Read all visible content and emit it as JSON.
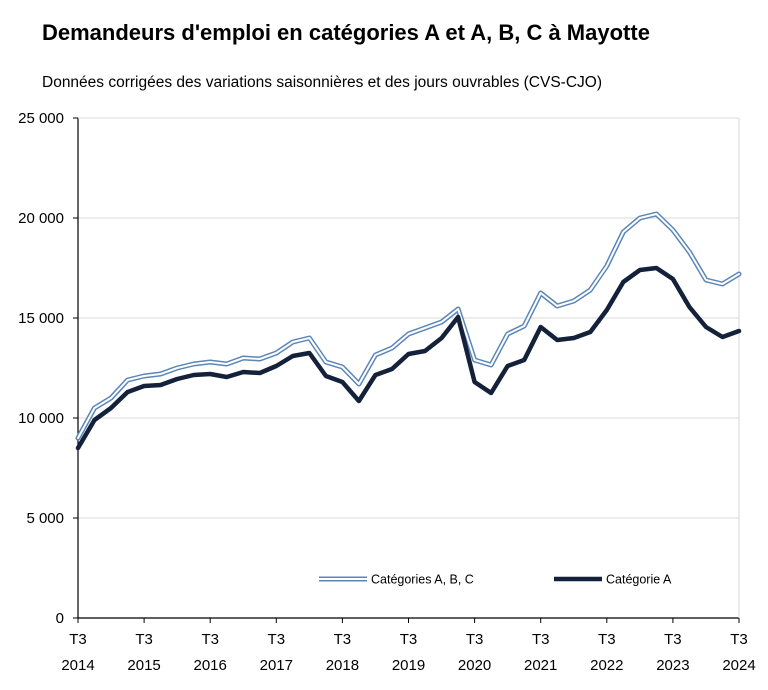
{
  "header": {
    "title": "Demandeurs d'emploi en catégories A et A, B, C à Mayotte",
    "subtitle": "Données corrigées des variations saisonnières et des jours ouvrables (CVS-CJO)"
  },
  "colors": {
    "abc_outline": "#5b86b8",
    "abc_inner": "#ffffff",
    "a_line": "#13223a",
    "grid": "#d9d9d9",
    "axis": "#000000"
  },
  "chart_data": {
    "type": "line",
    "title": "Demandeurs d'emploi en catégories A et A, B, C à Mayotte",
    "subtitle": "Données corrigées des variations saisonnières et des jours ouvrables (CVS-CJO)",
    "xlabel": "",
    "ylabel": "",
    "ylim": [
      0,
      25000
    ],
    "yticks": [
      0,
      5000,
      10000,
      15000,
      20000,
      25000
    ],
    "ytick_labels": [
      "0",
      "5 000",
      "10 000",
      "15 000",
      "20 000",
      "25 000"
    ],
    "xticks": [
      {
        "top": "T3",
        "bottom": "2014"
      },
      {
        "top": "T3",
        "bottom": "2015"
      },
      {
        "top": "T3",
        "bottom": "2016"
      },
      {
        "top": "T3",
        "bottom": "2017"
      },
      {
        "top": "T3",
        "bottom": "2018"
      },
      {
        "top": "T3",
        "bottom": "2019"
      },
      {
        "top": "T3",
        "bottom": "2020"
      },
      {
        "top": "T3",
        "bottom": "2021"
      },
      {
        "top": "T3",
        "bottom": "2022"
      },
      {
        "top": "T3",
        "bottom": "2023"
      },
      {
        "top": "T3",
        "bottom": "2024"
      }
    ],
    "grid": true,
    "legend_position": "bottom",
    "x": [
      "T3 2014",
      "T4 2014",
      "T1 2015",
      "T2 2015",
      "T3 2015",
      "T4 2015",
      "T1 2016",
      "T2 2016",
      "T3 2016",
      "T4 2016",
      "T1 2017",
      "T2 2017",
      "T3 2017",
      "T4 2017",
      "T1 2018",
      "T2 2018",
      "T3 2018",
      "T4 2018",
      "T1 2019",
      "T2 2019",
      "T3 2019",
      "T4 2019",
      "T1 2020",
      "T2 2020",
      "T3 2020",
      "T4 2020",
      "T1 2021",
      "T2 2021",
      "T3 2021",
      "T4 2021",
      "T1 2022",
      "T2 2022",
      "T3 2022",
      "T4 2022",
      "T1 2023",
      "T2 2023",
      "T3 2023",
      "T4 2023",
      "T1 2024",
      "T2 2024",
      "T3 2024"
    ],
    "series": [
      {
        "name": "Catégories A, B, C",
        "style": "double",
        "values": [
          9000,
          10500,
          11000,
          11900,
          12100,
          12200,
          12500,
          12700,
          12800,
          12700,
          13000,
          12950,
          13250,
          13800,
          14000,
          12800,
          12550,
          11700,
          13150,
          13500,
          14200,
          14500,
          14800,
          15450,
          12900,
          12650,
          14200,
          14600,
          16250,
          15600,
          15850,
          16400,
          17600,
          19300,
          20000,
          20200,
          19400,
          18300,
          16900,
          16700,
          17200
        ]
      },
      {
        "name": "Catégorie A",
        "style": "solid",
        "values": [
          8500,
          9900,
          10500,
          11300,
          11600,
          11650,
          11950,
          12150,
          12200,
          12050,
          12300,
          12250,
          12600,
          13100,
          13250,
          12100,
          11800,
          10850,
          12150,
          12450,
          13200,
          13350,
          14000,
          15050,
          11800,
          11250,
          12600,
          12900,
          14550,
          13900,
          14000,
          14300,
          15400,
          16800,
          17400,
          17500,
          16950,
          15550,
          14550,
          14050,
          14350
        ]
      }
    ]
  }
}
